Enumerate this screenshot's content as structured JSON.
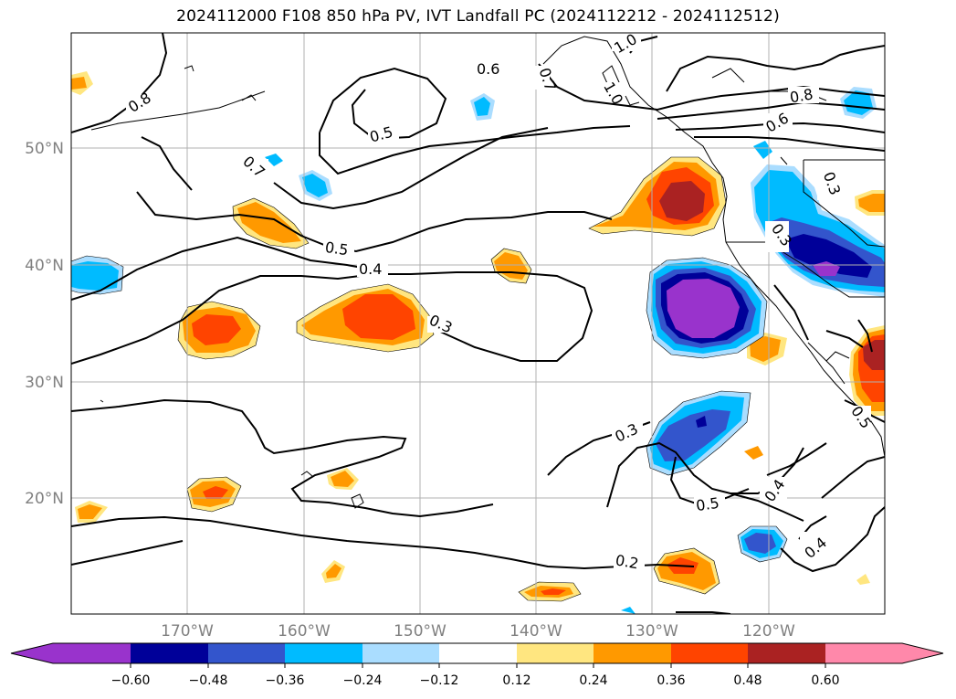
{
  "title": "2024112000 F108 850 hPa PV, IVT Landfall PC (2024112212 - 2024112512)",
  "map": {
    "lat_labels": [
      "50°N",
      "40°N",
      "30°N",
      "20°N"
    ],
    "lon_labels": [
      "170°W",
      "160°W",
      "150°W",
      "140°W",
      "130°W",
      "120°W"
    ],
    "contour_labels": [
      "0.8",
      "0.5",
      "0.6",
      "0.7",
      "1.0",
      "1.0",
      "0.8",
      "0.6",
      "0.3",
      "0.7",
      "0.5",
      "0.4",
      "0.3",
      "0.3",
      "0.3",
      "0.5",
      "0.4",
      "0.4",
      "0.2",
      "0.5"
    ]
  },
  "colorbar": {
    "ticks": [
      "−0.60",
      "−0.48",
      "−0.36",
      "−0.24",
      "−0.12",
      "0.12",
      "0.24",
      "0.36",
      "0.48",
      "0.60"
    ],
    "colors": [
      "#9933cc",
      "#000099",
      "#3355cc",
      "#00bbff",
      "#aaddff",
      "#ffffff",
      "#ffe680",
      "#ff9900",
      "#ff4400",
      "#aa2222",
      "#ff88aa"
    ]
  }
}
